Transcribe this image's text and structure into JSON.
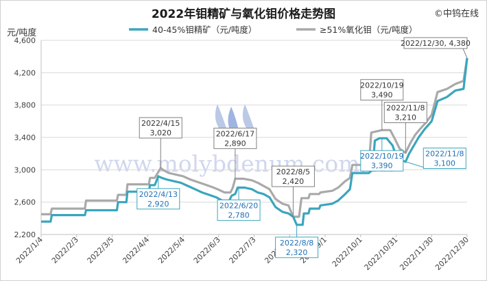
{
  "chart_data": {
    "type": "line",
    "title": "2022年钼精矿与氧化钼价格走势图",
    "source": "©中钨在线",
    "ylabel": "元/吨度",
    "ylim": [
      2200,
      4600
    ],
    "yticks": [
      2200,
      2600,
      3000,
      3400,
      3800,
      4200,
      4600
    ],
    "ytick_labels": [
      "2,200",
      "2,600",
      "3,000",
      "3,400",
      "3,800",
      "4,200",
      "4,600"
    ],
    "xticks": [
      "2022/1/4",
      "2022/2/3",
      "2022/3/5",
      "2022/4/4",
      "2022/5/4",
      "2022/6/3",
      "2022/7/3",
      "2022/8/2",
      "2022/9/1",
      "2022/10/1",
      "2022/10/31",
      "2022/11/30",
      "2022/12/30"
    ],
    "xlim": [
      "2022/1/4",
      "2022/12/30"
    ],
    "grid": true,
    "legend_position": "top",
    "watermark": "www.molybdenum.com.cn",
    "watermark_logo": "CTOMS",
    "series": [
      {
        "name": "40-45%钼精矿（元/吨度）",
        "color": "#3aa5bd",
        "points": [
          [
            "2022/1/4",
            2360
          ],
          [
            "2022/1/12",
            2360
          ],
          [
            "2022/1/13",
            2440
          ],
          [
            "2022/2/10",
            2440
          ],
          [
            "2022/2/11",
            2500
          ],
          [
            "2022/3/9",
            2500
          ],
          [
            "2022/3/10",
            2600
          ],
          [
            "2022/3/17",
            2600
          ],
          [
            "2022/3/18",
            2730
          ],
          [
            "2022/4/5",
            2730
          ],
          [
            "2022/4/6",
            2810
          ],
          [
            "2022/4/10",
            2810
          ],
          [
            "2022/4/13",
            2920
          ],
          [
            "2022/4/16",
            2900
          ],
          [
            "2022/4/20",
            2880
          ],
          [
            "2022/4/26",
            2860
          ],
          [
            "2022/5/2",
            2840
          ],
          [
            "2022/5/8",
            2800
          ],
          [
            "2022/5/14",
            2760
          ],
          [
            "2022/5/20",
            2720
          ],
          [
            "2022/5/26",
            2690
          ],
          [
            "2022/6/1",
            2660
          ],
          [
            "2022/6/6",
            2620
          ],
          [
            "2022/6/12",
            2620
          ],
          [
            "2022/6/14",
            2680
          ],
          [
            "2022/6/17",
            2700
          ],
          [
            "2022/6/19",
            2780
          ],
          [
            "2022/6/25",
            2780
          ],
          [
            "2022/7/1",
            2760
          ],
          [
            "2022/7/6",
            2720
          ],
          [
            "2022/7/11",
            2700
          ],
          [
            "2022/7/16",
            2660
          ],
          [
            "2022/7/21",
            2540
          ],
          [
            "2022/7/27",
            2480
          ],
          [
            "2022/8/1",
            2460
          ],
          [
            "2022/8/5",
            2420
          ],
          [
            "2022/8/8",
            2320
          ],
          [
            "2022/8/13",
            2320
          ],
          [
            "2022/8/14",
            2460
          ],
          [
            "2022/8/18",
            2460
          ],
          [
            "2022/8/19",
            2520
          ],
          [
            "2022/8/27",
            2520
          ],
          [
            "2022/8/28",
            2560
          ],
          [
            "2022/9/7",
            2580
          ],
          [
            "2022/9/12",
            2620
          ],
          [
            "2022/9/18",
            2700
          ],
          [
            "2022/9/22",
            2760
          ],
          [
            "2022/9/24",
            2960
          ],
          [
            "2022/10/8",
            2960
          ],
          [
            "2022/10/11",
            3000
          ],
          [
            "2022/10/13",
            3360
          ],
          [
            "2022/10/17",
            3390
          ],
          [
            "2022/10/23",
            3390
          ],
          [
            "2022/10/28",
            3300
          ],
          [
            "2022/11/1",
            3130
          ],
          [
            "2022/11/8",
            3100
          ],
          [
            "2022/11/11",
            3200
          ],
          [
            "2022/11/15",
            3300
          ],
          [
            "2022/11/19",
            3400
          ],
          [
            "2022/11/24",
            3500
          ],
          [
            "2022/11/30",
            3600
          ],
          [
            "2022/12/5",
            3850
          ],
          [
            "2022/12/13",
            3900
          ],
          [
            "2022/12/20",
            3980
          ],
          [
            "2022/12/27",
            4000
          ],
          [
            "2022/12/30",
            4380
          ]
        ]
      },
      {
        "name": "≥51%氧化钼（元/吨度）",
        "color": "#a9a9a9",
        "points": [
          [
            "2022/1/4",
            2450
          ],
          [
            "2022/1/12",
            2450
          ],
          [
            "2022/1/13",
            2520
          ],
          [
            "2022/2/10",
            2520
          ],
          [
            "2022/2/11",
            2620
          ],
          [
            "2022/3/9",
            2620
          ],
          [
            "2022/3/10",
            2690
          ],
          [
            "2022/3/17",
            2690
          ],
          [
            "2022/3/18",
            2820
          ],
          [
            "2022/4/5",
            2820
          ],
          [
            "2022/4/6",
            2900
          ],
          [
            "2022/4/10",
            2900
          ],
          [
            "2022/4/15",
            3020
          ],
          [
            "2022/4/18",
            2990
          ],
          [
            "2022/4/22",
            2960
          ],
          [
            "2022/4/28",
            2940
          ],
          [
            "2022/5/4",
            2920
          ],
          [
            "2022/5/10",
            2880
          ],
          [
            "2022/5/16",
            2850
          ],
          [
            "2022/5/22",
            2820
          ],
          [
            "2022/5/28",
            2790
          ],
          [
            "2022/6/2",
            2760
          ],
          [
            "2022/6/8",
            2720
          ],
          [
            "2022/6/13",
            2720
          ],
          [
            "2022/6/15",
            2780
          ],
          [
            "2022/6/17",
            2890
          ],
          [
            "2022/6/24",
            2890
          ],
          [
            "2022/7/1",
            2870
          ],
          [
            "2022/7/6",
            2840
          ],
          [
            "2022/7/11",
            2800
          ],
          [
            "2022/7/16",
            2760
          ],
          [
            "2022/7/21",
            2640
          ],
          [
            "2022/7/27",
            2580
          ],
          [
            "2022/8/1",
            2560
          ],
          [
            "2022/8/5",
            2420
          ],
          [
            "2022/8/10",
            2420
          ],
          [
            "2022/8/12",
            2650
          ],
          [
            "2022/8/18",
            2650
          ],
          [
            "2022/8/19",
            2700
          ],
          [
            "2022/8/27",
            2700
          ],
          [
            "2022/8/28",
            2720
          ],
          [
            "2022/9/7",
            2740
          ],
          [
            "2022/9/12",
            2780
          ],
          [
            "2022/9/18",
            2860
          ],
          [
            "2022/9/22",
            2900
          ],
          [
            "2022/9/24",
            3060
          ],
          [
            "2022/10/8",
            3060
          ],
          [
            "2022/10/10",
            3460
          ],
          [
            "2022/10/19",
            3490
          ],
          [
            "2022/10/26",
            3490
          ],
          [
            "2022/10/30",
            3380
          ],
          [
            "2022/11/3",
            3260
          ],
          [
            "2022/11/8",
            3210
          ],
          [
            "2022/11/12",
            3330
          ],
          [
            "2022/11/16",
            3430
          ],
          [
            "2022/11/20",
            3500
          ],
          [
            "2022/11/25",
            3580
          ],
          [
            "2022/11/30",
            3680
          ],
          [
            "2022/12/5",
            3960
          ],
          [
            "2022/12/13",
            4000
          ],
          [
            "2022/12/20",
            4060
          ],
          [
            "2022/12/27",
            4100
          ],
          [
            "2022/12/30",
            4380
          ]
        ]
      }
    ],
    "annotations": [
      {
        "date": "2022/4/15",
        "value_text": "3,020",
        "date_text": "2022/4/15",
        "value": 3020,
        "series": 1,
        "style": "gray",
        "place": "above"
      },
      {
        "date": "2022/4/13",
        "value_text": "2,920",
        "date_text": "2022/4/13",
        "value": 2920,
        "series": 0,
        "style": "blue",
        "place": "below"
      },
      {
        "date": "2022/6/17",
        "value_text": "2,890",
        "date_text": "2022/6/17",
        "value": 2890,
        "series": 1,
        "style": "gray",
        "place": "above"
      },
      {
        "date": "2022/6/20",
        "value_text": "2,780",
        "date_text": "2022/6/20",
        "value": 2780,
        "series": 0,
        "style": "blue",
        "place": "below"
      },
      {
        "date": "2022/8/5",
        "value_text": "2,420",
        "date_text": "2022/8/5",
        "value": 2420,
        "series": 1,
        "style": "gray",
        "place": "above"
      },
      {
        "date": "2022/8/8",
        "value_text": "2,320",
        "date_text": "2022/8/8",
        "value": 2320,
        "series": 0,
        "style": "blue",
        "place": "below"
      },
      {
        "date": "2022/10/19",
        "value_text": "3,490",
        "date_text": "2022/10/19",
        "value": 3490,
        "series": 1,
        "style": "gray",
        "place": "above"
      },
      {
        "date": "2022/10/19",
        "value_text": "3,390",
        "date_text": "2022/10/19",
        "value": 3390,
        "series": 0,
        "style": "blue",
        "place": "below"
      },
      {
        "date": "2022/11/8",
        "value_text": "3,210",
        "date_text": "2022/11/8",
        "value": 3210,
        "series": 1,
        "style": "gray",
        "place": "above"
      },
      {
        "date": "2022/11/8",
        "value_text": "3,100",
        "date_text": "2022/11/8",
        "value": 3100,
        "series": 0,
        "style": "blue",
        "place": "right"
      },
      {
        "date": "2022/12/30",
        "value_text": "4,380",
        "date_text": "2022/12/30",
        "value": 4380,
        "series": 1,
        "style": "gray",
        "place": "single"
      }
    ]
  }
}
